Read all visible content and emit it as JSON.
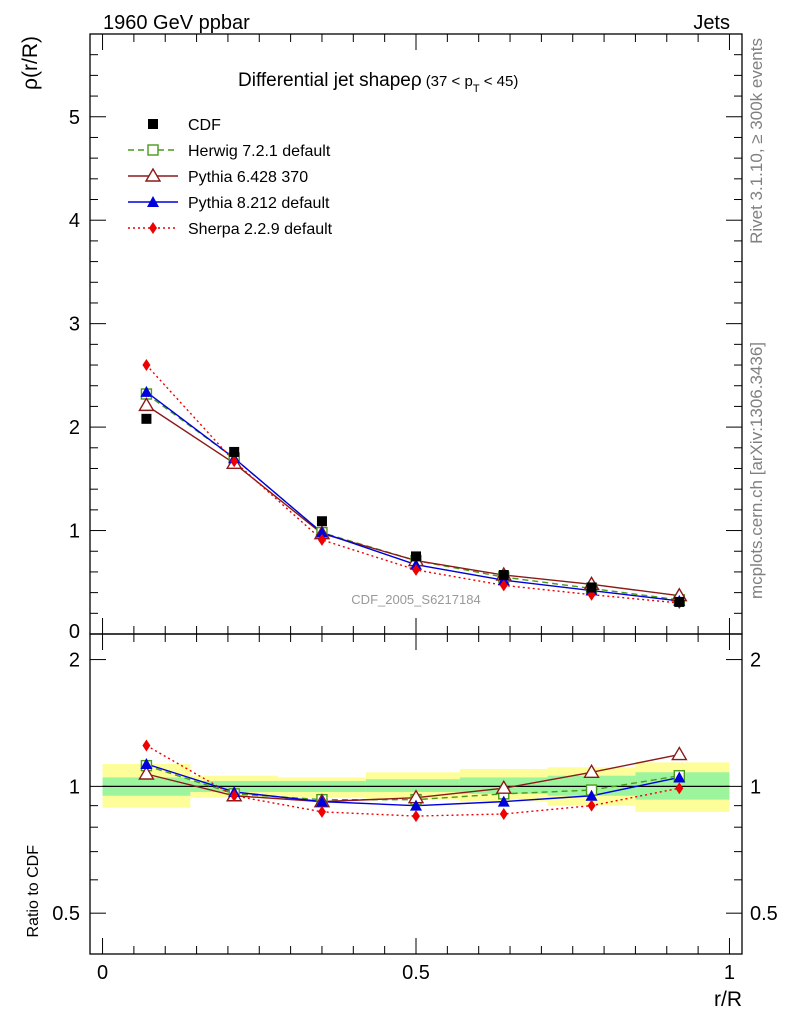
{
  "chart_data": {
    "type": "line",
    "header_left": "1960 GeV ppbar",
    "header_right": "Jets",
    "title": "Differential jet shapeρ",
    "title_suffix": "(37 < p",
    "title_sub": "T",
    "title_end": " < 45)",
    "ylabel": "ρ(r/R)",
    "xlabel": "r/R",
    "ratio_ylabel": "Ratio to CDF",
    "watermark": "CDF_2005_S6217184",
    "side_text_top": "Rivet 3.1.10, ≥ 300k events",
    "side_text_bottom": "mcplots.cern.ch [arXiv:1306.3436]",
    "xlim": [
      -0.02,
      1.02
    ],
    "ylim": [
      0,
      5.8
    ],
    "ratio_ylim": [
      0.4,
      2.3
    ],
    "x_ticks": [
      "0",
      "0.5",
      "1"
    ],
    "y_ticks": [
      "0",
      "1",
      "2",
      "3",
      "4",
      "5"
    ],
    "ratio_ticks": [
      "0.5",
      "1",
      "2"
    ],
    "x": [
      0.07,
      0.21,
      0.35,
      0.5,
      0.64,
      0.78,
      0.92
    ],
    "bin_edges": [
      0,
      0.14,
      0.28,
      0.42,
      0.57,
      0.71,
      0.85,
      1.0
    ],
    "data": {
      "name": "CDF",
      "values": [
        2.08,
        1.76,
        1.09,
        0.75,
        0.57,
        0.45,
        0.31
      ],
      "band_inner": [
        [
          0.95,
          1.05
        ],
        [
          0.97,
          1.03
        ],
        [
          0.97,
          1.03
        ],
        [
          0.97,
          1.04
        ],
        [
          0.96,
          1.05
        ],
        [
          0.95,
          1.06
        ],
        [
          0.93,
          1.08
        ]
      ],
      "band_outer": [
        [
          0.89,
          1.13
        ],
        [
          0.94,
          1.06
        ],
        [
          0.94,
          1.05
        ],
        [
          0.93,
          1.08
        ],
        [
          0.92,
          1.1
        ],
        [
          0.9,
          1.11
        ],
        [
          0.87,
          1.14
        ]
      ]
    },
    "series": [
      {
        "name": "Herwig 7.2.1 default",
        "color": "#4a9a1a",
        "dash": "6,4",
        "marker": "open-square",
        "values": [
          2.32,
          1.7,
          0.98,
          0.71,
          0.55,
          0.44,
          0.33
        ],
        "ratio": [
          1.12,
          0.96,
          0.93,
          0.93,
          0.96,
          0.98,
          1.06
        ]
      },
      {
        "name": "Pythia 6.428 370",
        "color": "#8b1a1a",
        "dash": "",
        "marker": "open-triangle",
        "values": [
          2.21,
          1.65,
          0.97,
          0.71,
          0.57,
          0.48,
          0.37
        ],
        "ratio": [
          1.07,
          0.95,
          0.92,
          0.94,
          0.99,
          1.08,
          1.19
        ]
      },
      {
        "name": "Pythia 8.212 default",
        "color": "#0000dd",
        "dash": "",
        "marker": "filled-triangle",
        "values": [
          2.34,
          1.7,
          0.98,
          0.67,
          0.52,
          0.42,
          0.32
        ],
        "ratio": [
          1.13,
          0.97,
          0.92,
          0.9,
          0.92,
          0.95,
          1.05
        ]
      },
      {
        "name": "Sherpa 2.2.9 default",
        "color": "#ee0000",
        "dash": "2,3",
        "marker": "filled-diamond",
        "values": [
          2.6,
          1.67,
          0.91,
          0.62,
          0.47,
          0.38,
          0.3
        ],
        "ratio": [
          1.25,
          0.95,
          0.87,
          0.85,
          0.86,
          0.9,
          0.99
        ]
      }
    ]
  }
}
